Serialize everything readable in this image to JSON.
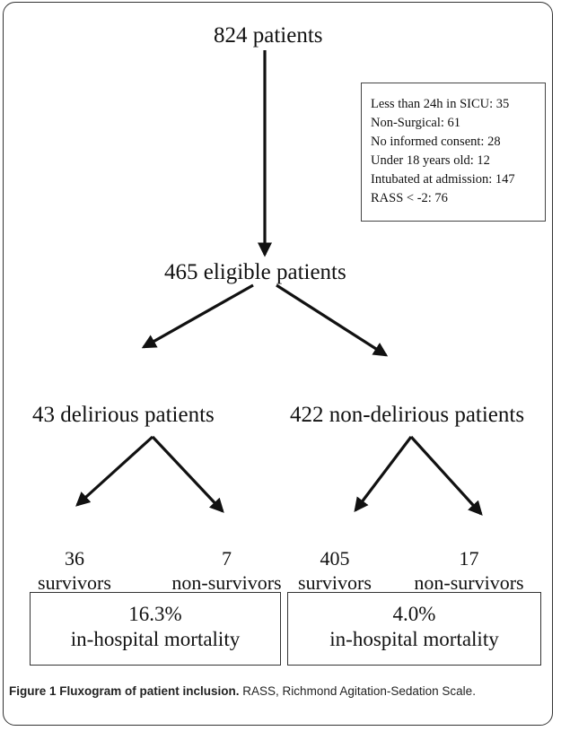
{
  "flow": {
    "total": "824 patients",
    "exclusions": [
      "Less than 24h in SICU: 35",
      "Non-Surgical: 61",
      "No informed consent: 28",
      "Under 18 years old: 12",
      "Intubated at admission: 147",
      "RASS < -2: 76"
    ],
    "eligible": "465 eligible patients",
    "delirious": {
      "label": "43 delirious patients",
      "survivors_count": "36",
      "survivors_label": "survivors",
      "nonsurvivors_count": "7",
      "nonsurvivors_label": "non-survivors",
      "mortality_value": "16.3%",
      "mortality_label": "in-hospital mortality"
    },
    "nondelirious": {
      "label": "422 non-delirious patients",
      "survivors_count": "405",
      "survivors_label": "survivors",
      "nonsurvivors_count": "17",
      "nonsurvivors_label": "non-survivors",
      "mortality_value": "4.0%",
      "mortality_label": "in-hospital mortality"
    }
  },
  "caption": {
    "title": "Figure 1 Fluxogram of patient inclusion.",
    "text": "RASS, Richmond Agitation-Sedation Scale."
  }
}
